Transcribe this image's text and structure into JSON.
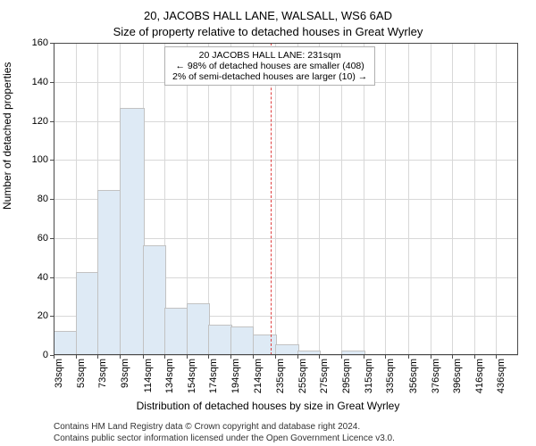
{
  "title_line1": "20, JACOBS HALL LANE, WALSALL, WS6 6AD",
  "title_line2": "Size of property relative to detached houses in Great Wyrley",
  "ylabel": "Number of detached properties",
  "xlabel": "Distribution of detached houses by size in Great Wyrley",
  "footer_line1": "Contains HM Land Registry data © Crown copyright and database right 2024.",
  "footer_line2": "Contains public sector information licensed under the Open Government Licence v3.0.",
  "chart": {
    "type": "histogram",
    "ylim": [
      0,
      160
    ],
    "ytick_step": 20,
    "yticks": [
      0,
      20,
      40,
      60,
      80,
      100,
      120,
      140,
      160
    ],
    "xlim": [
      33,
      456
    ],
    "xticks": [
      33,
      53,
      73,
      93,
      114,
      134,
      154,
      174,
      194,
      214,
      235,
      255,
      275,
      295,
      315,
      335,
      356,
      376,
      396,
      416,
      436
    ],
    "xtick_labels": [
      "33sqm",
      "53sqm",
      "73sqm",
      "93sqm",
      "114sqm",
      "134sqm",
      "154sqm",
      "174sqm",
      "194sqm",
      "214sqm",
      "235sqm",
      "255sqm",
      "275sqm",
      "295sqm",
      "315sqm",
      "335sqm",
      "356sqm",
      "376sqm",
      "396sqm",
      "416sqm",
      "436sqm"
    ],
    "values": [
      12,
      42,
      84,
      126,
      56,
      24,
      26,
      15,
      14,
      10,
      5,
      2,
      0,
      2,
      0,
      0,
      0,
      0,
      0,
      0
    ],
    "bar_fill": "#deeaf5",
    "bar_stroke": "#c2c2c2",
    "grid_color": "#d8d8d8",
    "axis_color": "#4a4a4a",
    "background_color": "#ffffff",
    "marker_x": 231,
    "marker_color": "#e04040",
    "annotation": {
      "lines": [
        "20 JACOBS HALL LANE: 231sqm",
        "← 98% of detached houses are smaller (408)",
        "2% of semi-detached houses are larger (10) →"
      ]
    }
  }
}
